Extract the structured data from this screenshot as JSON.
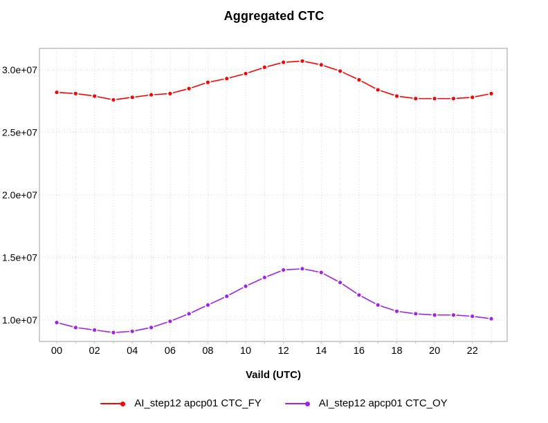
{
  "chart_data": {
    "type": "line",
    "title": "Aggregated CTC",
    "xlabel": "Vaild (UTC)",
    "ylabel": "",
    "x_hours": [
      "00",
      "01",
      "02",
      "03",
      "04",
      "05",
      "06",
      "07",
      "08",
      "09",
      "10",
      "11",
      "12",
      "13",
      "14",
      "15",
      "16",
      "17",
      "18",
      "19",
      "20",
      "21",
      "22",
      "23"
    ],
    "x_tick_labels": [
      "00",
      "02",
      "04",
      "06",
      "08",
      "10",
      "12",
      "14",
      "16",
      "18",
      "20",
      "22"
    ],
    "y_ticks": [
      {
        "value": 10000000,
        "label": "1.0e+07"
      },
      {
        "value": 15000000,
        "label": "1.5e+07"
      },
      {
        "value": 20000000,
        "label": "2.0e+07"
      },
      {
        "value": 25000000,
        "label": "2.5e+07"
      },
      {
        "value": 30000000,
        "label": "3.0e+07"
      }
    ],
    "ylim": [
      8300000,
      31700000
    ],
    "grid": "dotted both axes, at every hour vertically and每 labeled value horizontally",
    "legend_position": "bottom-center",
    "marker": "filled-circle",
    "line_style": "segments-with-gaps-around-points",
    "series": [
      {
        "name": "AI_step12 apcp01 CTC_FY",
        "color": "#FF0000",
        "values": [
          28200000,
          28100000,
          27900000,
          27600000,
          27800000,
          28000000,
          28100000,
          28500000,
          29000000,
          29300000,
          29700000,
          30200000,
          30600000,
          30700000,
          30400000,
          29900000,
          29200000,
          28400000,
          27900000,
          27700000,
          27700000,
          27700000,
          27800000,
          28100000
        ]
      },
      {
        "name": "AI_step12 apcp01 CTC_OY",
        "color": "#A020F0",
        "values": [
          9800000,
          9400000,
          9200000,
          9000000,
          9100000,
          9400000,
          9900000,
          10500000,
          11200000,
          11900000,
          12700000,
          13400000,
          14000000,
          14100000,
          13800000,
          13000000,
          12000000,
          11200000,
          10700000,
          10500000,
          10400000,
          10400000,
          10300000,
          10100000
        ]
      }
    ],
    "colors": {
      "grid": "#d6d6d6",
      "box": "#bdbdbd",
      "text": "#000000",
      "background": "#ffffff"
    }
  }
}
